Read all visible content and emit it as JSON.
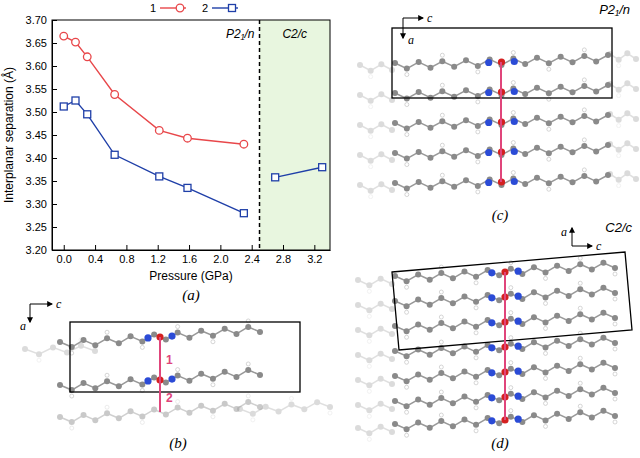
{
  "chart_data": {
    "type": "line",
    "panel_label": "(a)",
    "x_label": "Pressure (GPa)",
    "y_label": "Interplanar separation (Å)",
    "xlim": [
      -0.15,
      3.4
    ],
    "ylim": [
      3.2,
      3.7
    ],
    "xticks": [
      {
        "value": 0,
        "label": "0.0"
      },
      0.4,
      0.8,
      1.2,
      1.6,
      {
        "value": 2,
        "label": "2.0"
      },
      2.4,
      2.8,
      3.2
    ],
    "yticks": [
      {
        "value": 3.2,
        "label": "3.20"
      },
      3.25,
      {
        "value": 3.3,
        "label": "3.30"
      },
      3.35,
      {
        "value": 3.4,
        "label": "3.40"
      },
      3.45,
      {
        "value": 3.5,
        "label": "3.50"
      },
      3.55,
      {
        "value": 3.6,
        "label": "3.60"
      },
      3.65,
      {
        "value": 3.7,
        "label": "3.70"
      }
    ],
    "transition": 2.5,
    "phase_labels": [
      "P2₁/n",
      "C2/c"
    ],
    "legend": "top",
    "series": [
      {
        "name": "1",
        "color": "#e8474a",
        "marker": "circle",
        "x": [
          0,
          0.15,
          0.3,
          0.65,
          1.22,
          1.58,
          2.3
        ],
        "values": [
          3.665,
          3.652,
          3.62,
          3.538,
          3.46,
          3.443,
          3.43
        ]
      },
      {
        "name": "2",
        "color": "#1f3fa8",
        "marker": "square",
        "x": [
          0,
          0.15,
          0.3,
          0.65,
          1.22,
          1.58,
          2.3,
          2.5,
          2.7,
          3.3
        ],
        "values": [
          3.512,
          3.525,
          3.495,
          3.407,
          3.36,
          3.335,
          3.28,
          null,
          3.358,
          3.38
        ]
      }
    ]
  },
  "structures": [
    {
      "label": "(b)",
      "axes": [
        "a",
        "c"
      ],
      "markers": [
        "1",
        "2"
      ]
    },
    {
      "label": "(c)",
      "title": "P2₁/n",
      "axes": [
        "a",
        "c"
      ]
    },
    {
      "label": "(d)",
      "title": "C2/c",
      "axes": [
        "a",
        "c"
      ]
    }
  ]
}
